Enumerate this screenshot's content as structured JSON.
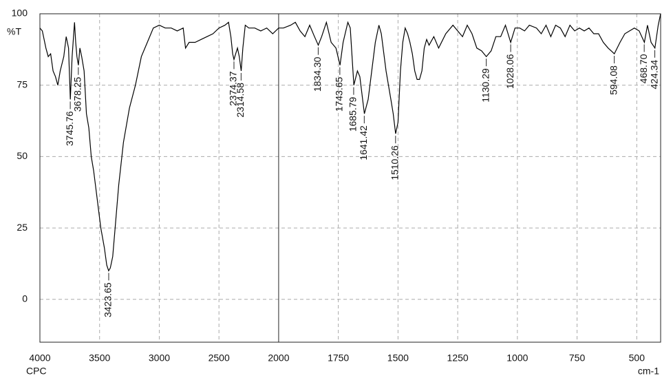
{
  "chart_data": {
    "type": "line",
    "y_label": "%T",
    "x_label_left": "CPC",
    "x_label_right": "cm-1",
    "color": "#000000",
    "xlim": [
      4000,
      400
    ],
    "x_scale_break": 2000,
    "x_scale_factor_above_break": 0.5,
    "ylim": [
      -15,
      100
    ],
    "xticks": [
      4000,
      3500,
      3000,
      2500,
      2000,
      1750,
      1500,
      1250,
      1000,
      750,
      500
    ],
    "yticks": [
      0,
      25,
      50,
      75,
      100
    ],
    "grid": true,
    "x": [
      4000,
      3980,
      3950,
      3930,
      3910,
      3890,
      3870,
      3850,
      3830,
      3800,
      3780,
      3760,
      3745,
      3730,
      3710,
      3700,
      3690,
      3678,
      3665,
      3650,
      3630,
      3610,
      3590,
      3570,
      3550,
      3520,
      3490,
      3460,
      3440,
      3424,
      3410,
      3390,
      3370,
      3340,
      3300,
      3250,
      3200,
      3150,
      3100,
      3050,
      3000,
      2950,
      2900,
      2850,
      2800,
      2780,
      2750,
      2700,
      2650,
      2600,
      2550,
      2500,
      2450,
      2420,
      2400,
      2385,
      2374,
      2360,
      2345,
      2330,
      2314,
      2300,
      2280,
      2250,
      2200,
      2150,
      2100,
      2050,
      2000,
      1980,
      1950,
      1930,
      1910,
      1890,
      1870,
      1850,
      1834,
      1820,
      1800,
      1780,
      1760,
      1743,
      1730,
      1710,
      1700,
      1685,
      1670,
      1660,
      1641,
      1625,
      1610,
      1595,
      1580,
      1570,
      1550,
      1530,
      1520,
      1510,
      1500,
      1490,
      1480,
      1470,
      1460,
      1450,
      1440,
      1430,
      1420,
      1410,
      1400,
      1390,
      1380,
      1370,
      1350,
      1330,
      1300,
      1270,
      1250,
      1230,
      1210,
      1190,
      1170,
      1150,
      1130,
      1110,
      1090,
      1070,
      1050,
      1028,
      1010,
      990,
      970,
      950,
      920,
      900,
      880,
      860,
      840,
      820,
      800,
      780,
      760,
      740,
      720,
      700,
      680,
      660,
      640,
      620,
      594,
      570,
      550,
      530,
      510,
      490,
      468,
      455,
      440,
      424,
      410,
      400
    ],
    "values": [
      95,
      94,
      88,
      85,
      86,
      80,
      78,
      75,
      80,
      85,
      92,
      88,
      70,
      85,
      97,
      90,
      85,
      82,
      88,
      85,
      80,
      65,
      60,
      50,
      45,
      35,
      25,
      18,
      12,
      10,
      11,
      15,
      25,
      40,
      55,
      67,
      75,
      85,
      90,
      95,
      96,
      95,
      95,
      94,
      95,
      88,
      90,
      90,
      91,
      92,
      93,
      95,
      96,
      97,
      92,
      86,
      84,
      86,
      88,
      85,
      80,
      88,
      96,
      95,
      95,
      94,
      95,
      93,
      95,
      95,
      96,
      97,
      94,
      92,
      96,
      92,
      89,
      92,
      97,
      90,
      88,
      82,
      90,
      97,
      95,
      75,
      80,
      78,
      65,
      70,
      80,
      90,
      96,
      93,
      80,
      70,
      65,
      58,
      62,
      80,
      90,
      95,
      93,
      90,
      86,
      80,
      77,
      77,
      80,
      88,
      91,
      89,
      92,
      88,
      93,
      96,
      94,
      92,
      96,
      93,
      88,
      87,
      85,
      87,
      92,
      92,
      96,
      90,
      95,
      95,
      94,
      96,
      95,
      93,
      96,
      92,
      96,
      95,
      92,
      96,
      94,
      95,
      94,
      95,
      93,
      93,
      90,
      88,
      86,
      90,
      93,
      94,
      95,
      94,
      90,
      96,
      90,
      88,
      96,
      100
    ],
    "peaks": [
      {
        "x": 3745.76,
        "y": 70
      },
      {
        "x": 3678.25,
        "y": 82
      },
      {
        "x": 3423.65,
        "y": 10
      },
      {
        "x": 2374.37,
        "y": 84
      },
      {
        "x": 2314.58,
        "y": 80
      },
      {
        "x": 1834.3,
        "y": 89
      },
      {
        "x": 1743.65,
        "y": 82
      },
      {
        "x": 1685.79,
        "y": 75
      },
      {
        "x": 1641.42,
        "y": 65
      },
      {
        "x": 1510.26,
        "y": 58
      },
      {
        "x": 1130.29,
        "y": 85
      },
      {
        "x": 1028.06,
        "y": 90
      },
      {
        "x": 594.08,
        "y": 86
      },
      {
        "x": 468.7,
        "y": 90
      },
      {
        "x": 424.34,
        "y": 88
      }
    ]
  }
}
